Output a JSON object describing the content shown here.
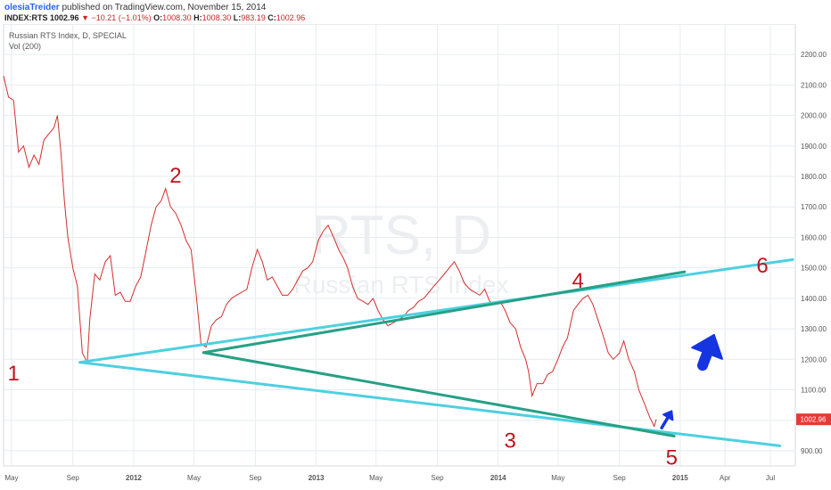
{
  "header": {
    "author": "olesiaTreider",
    "published": "published on TradingView.com, November 15, 2014",
    "symbol": "INDEX:RTS",
    "price": "1002.96",
    "change_arrow": "▼",
    "change": "−10.21 (−1.01%)",
    "o_label": "O:",
    "o_value": "1008.30",
    "h_label": "H:",
    "h_value": "1008.30",
    "l_label": "L:",
    "l_value": "983.19",
    "c_label": "C:",
    "c_value": "1002.96"
  },
  "chart_data": {
    "type": "line",
    "title": "Russian RTS Index, D, SPECIAL",
    "subtitle": "Vol (200)",
    "watermark_symbol": "RTS, D",
    "watermark_name": "Russian RTS Index",
    "ylim": [
      850,
      2300
    ],
    "y_ticks": [
      900,
      1000,
      1100,
      1200,
      1300,
      1400,
      1500,
      1600,
      1700,
      1800,
      1900,
      2000,
      2100,
      2200
    ],
    "y_tick_labels": [
      "900.00",
      "1000.00",
      "1100.00",
      "1200.00",
      "1300.00",
      "1400.00",
      "1500.00",
      "1600.00",
      "1700.00",
      "1800.00",
      "1900.00",
      "2000.00",
      "2100.00",
      "2200.00"
    ],
    "last_price_label": "1002.96",
    "x_range": [
      "2011-04-15",
      "2015-08-20"
    ],
    "x_ticks": [
      {
        "date": "2011-05-01",
        "label": "May",
        "bold": false
      },
      {
        "date": "2011-09-01",
        "label": "Sep",
        "bold": false
      },
      {
        "date": "2012-01-01",
        "label": "2012",
        "bold": true
      },
      {
        "date": "2012-05-01",
        "label": "May",
        "bold": false
      },
      {
        "date": "2012-09-01",
        "label": "Sep",
        "bold": false
      },
      {
        "date": "2013-01-01",
        "label": "2013",
        "bold": true
      },
      {
        "date": "2013-05-01",
        "label": "May",
        "bold": false
      },
      {
        "date": "2013-09-01",
        "label": "Sep",
        "bold": false
      },
      {
        "date": "2014-01-01",
        "label": "2014",
        "bold": true
      },
      {
        "date": "2014-05-01",
        "label": "May",
        "bold": false
      },
      {
        "date": "2014-09-01",
        "label": "Sep",
        "bold": false
      },
      {
        "date": "2015-01-01",
        "label": "2015",
        "bold": true
      },
      {
        "date": "2015-04-01",
        "label": "Apr",
        "bold": false
      },
      {
        "date": "2015-07-01",
        "label": "Jul",
        "bold": false
      }
    ],
    "series": [
      {
        "x": [
          "2011-04-15",
          "2011-04-25",
          "2011-05-05",
          "2011-05-15",
          "2011-05-25",
          "2011-06-05",
          "2011-06-15",
          "2011-06-25",
          "2011-07-05",
          "2011-07-15",
          "2011-07-25",
          "2011-08-01",
          "2011-08-08",
          "2011-08-15",
          "2011-08-22",
          "2011-09-01",
          "2011-09-10",
          "2011-09-20",
          "2011-09-30",
          "2011-10-05",
          "2011-10-15",
          "2011-10-25",
          "2011-11-05",
          "2011-11-15",
          "2011-11-25",
          "2011-12-05",
          "2011-12-15",
          "2011-12-25",
          "2012-01-05",
          "2012-01-15",
          "2012-01-25",
          "2012-02-05",
          "2012-02-15",
          "2012-02-25",
          "2012-03-05",
          "2012-03-15",
          "2012-03-25",
          "2012-04-05",
          "2012-04-15",
          "2012-04-25",
          "2012-05-05",
          "2012-05-15",
          "2012-05-25",
          "2012-06-05",
          "2012-06-15",
          "2012-06-25",
          "2012-07-05",
          "2012-07-15",
          "2012-07-25",
          "2012-08-05",
          "2012-08-15",
          "2012-08-25",
          "2012-09-05",
          "2012-09-15",
          "2012-09-25",
          "2012-10-05",
          "2012-10-15",
          "2012-10-25",
          "2012-11-05",
          "2012-11-15",
          "2012-11-25",
          "2012-12-05",
          "2012-12-15",
          "2012-12-25",
          "2013-01-05",
          "2013-01-15",
          "2013-01-25",
          "2013-02-05",
          "2013-02-15",
          "2013-02-25",
          "2013-03-05",
          "2013-03-15",
          "2013-03-25",
          "2013-04-05",
          "2013-04-15",
          "2013-04-25",
          "2013-05-05",
          "2013-05-15",
          "2013-05-25",
          "2013-06-05",
          "2013-06-15",
          "2013-06-25",
          "2013-07-05",
          "2013-07-15",
          "2013-07-25",
          "2013-08-05",
          "2013-08-15",
          "2013-08-25",
          "2013-09-05",
          "2013-09-15",
          "2013-09-25",
          "2013-10-05",
          "2013-10-15",
          "2013-10-25",
          "2013-11-05",
          "2013-11-15",
          "2013-11-25",
          "2013-12-05",
          "2013-12-15",
          "2013-12-25",
          "2014-01-05",
          "2014-01-15",
          "2014-01-25",
          "2014-02-05",
          "2014-02-15",
          "2014-02-25",
          "2014-03-03",
          "2014-03-10",
          "2014-03-20",
          "2014-04-01",
          "2014-04-10",
          "2014-04-20",
          "2014-05-01",
          "2014-05-10",
          "2014-05-20",
          "2014-06-01",
          "2014-06-10",
          "2014-06-20",
          "2014-06-30",
          "2014-07-10",
          "2014-07-20",
          "2014-07-30",
          "2014-08-10",
          "2014-08-20",
          "2014-09-01",
          "2014-09-10",
          "2014-09-20",
          "2014-10-01",
          "2014-10-10",
          "2014-10-20",
          "2014-11-01",
          "2014-11-10",
          "2014-11-14"
        ],
        "y": [
          2130,
          2060,
          2050,
          1880,
          1900,
          1830,
          1870,
          1840,
          1920,
          1940,
          1960,
          2000,
          1880,
          1720,
          1600,
          1500,
          1440,
          1220,
          1190,
          1330,
          1480,
          1460,
          1520,
          1540,
          1410,
          1420,
          1390,
          1390,
          1440,
          1470,
          1550,
          1640,
          1700,
          1720,
          1760,
          1700,
          1680,
          1640,
          1590,
          1560,
          1420,
          1250,
          1240,
          1310,
          1330,
          1340,
          1380,
          1400,
          1410,
          1420,
          1430,
          1500,
          1560,
          1520,
          1460,
          1470,
          1440,
          1410,
          1410,
          1430,
          1460,
          1490,
          1500,
          1520,
          1590,
          1620,
          1640,
          1600,
          1560,
          1530,
          1500,
          1440,
          1400,
          1390,
          1380,
          1400,
          1360,
          1330,
          1310,
          1320,
          1330,
          1340,
          1360,
          1370,
          1390,
          1400,
          1420,
          1440,
          1460,
          1480,
          1500,
          1520,
          1490,
          1450,
          1430,
          1420,
          1410,
          1430,
          1390,
          1380,
          1390,
          1360,
          1320,
          1300,
          1240,
          1200,
          1160,
          1080,
          1120,
          1120,
          1150,
          1160,
          1200,
          1240,
          1270,
          1360,
          1380,
          1400,
          1410,
          1380,
          1330,
          1280,
          1220,
          1200,
          1220,
          1260,
          1200,
          1160,
          1100,
          1060,
          1010,
          980,
          1003
        ]
      }
    ],
    "trendlines": [
      {
        "color": "#4dd0e1",
        "from": {
          "x": "2011-09-15",
          "y": 1190
        },
        "to": {
          "x": "2015-08-15",
          "y": 1527
        }
      },
      {
        "color": "#4dd0e1",
        "from": {
          "x": "2011-09-15",
          "y": 1190
        },
        "to": {
          "x": "2015-07-20",
          "y": 916
        }
      },
      {
        "color": "#26a085",
        "from": {
          "x": "2012-05-20",
          "y": 1222
        },
        "to": {
          "x": "2015-01-10",
          "y": 1487
        }
      },
      {
        "color": "#26a085",
        "from": {
          "x": "2012-05-20",
          "y": 1222
        },
        "to": {
          "x": "2014-12-20",
          "y": 948
        }
      }
    ],
    "annotations": [
      {
        "text": "1",
        "x": "2011-05-05",
        "y": 1130
      },
      {
        "text": "2",
        "x": "2012-03-25",
        "y": 1780
      },
      {
        "text": "3",
        "x": "2014-01-25",
        "y": 910
      },
      {
        "text": "4",
        "x": "2014-06-10",
        "y": 1435
      },
      {
        "text": "5",
        "x": "2014-12-15",
        "y": 855
      },
      {
        "text": "6",
        "x": "2015-06-15",
        "y": 1485
      }
    ],
    "arrows": [
      {
        "name": "big-up-arrow",
        "color": "#1435e0",
        "from": {
          "x": "2015-02-15",
          "y": 1180
        },
        "to": {
          "x": "2015-03-10",
          "y": 1280
        }
      },
      {
        "name": "small-up-arrow",
        "color": "#1435e0",
        "from": {
          "x": "2014-11-25",
          "y": 975
        },
        "to": {
          "x": "2014-12-15",
          "y": 1030
        }
      }
    ],
    "colors": {
      "price": "#d32f2f",
      "grid": "#e8ebf0",
      "axis_text": "#555555",
      "annotation": "#c0141c",
      "last_price_bg": "#e53935"
    },
    "grid": true
  }
}
